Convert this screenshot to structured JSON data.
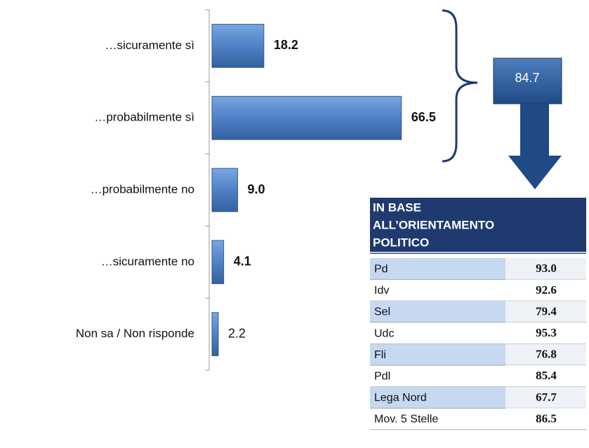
{
  "chart_data": {
    "type": "bar",
    "orientation": "horizontal",
    "categories": [
      "…sicuramente  sì",
      "…probabilmente  sì",
      "…probabilmente  no",
      "…sicuramente  no",
      "Non sa / Non risponde"
    ],
    "values": [
      18.2,
      66.5,
      9.0,
      4.1,
      2.2
    ],
    "value_labels": [
      "18.2",
      "66.5",
      "9.0",
      "4.1",
      "2.2"
    ],
    "color": "#4f81c7",
    "xlim": [
      0,
      70
    ]
  },
  "total": 84.7,
  "table": {
    "title_lines": [
      "IN BASE",
      "ALL’ORIENTAMENTO",
      "POLITICO"
    ],
    "rows": [
      [
        "Pd",
        "93.0"
      ],
      [
        "Idv",
        "92.6"
      ],
      [
        "Sel",
        "79.4"
      ],
      [
        "Udc",
        "95.3"
      ],
      [
        "Fli",
        "76.8"
      ],
      [
        "Pdl",
        "85.4"
      ],
      [
        "Lega Nord",
        "67.7"
      ],
      [
        "Mov. 5 Stelle",
        "86.5"
      ]
    ]
  }
}
